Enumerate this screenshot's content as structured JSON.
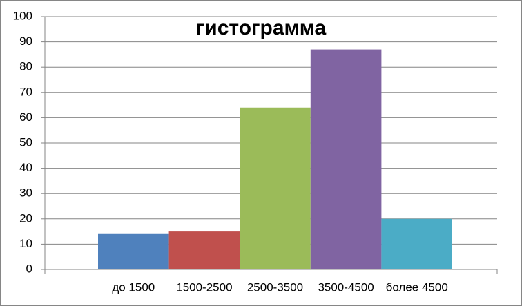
{
  "chart_data": {
    "type": "bar",
    "title": "гистограмма",
    "categories": [
      "до 1500",
      "1500-2500",
      "2500-3500",
      "3500-4500",
      "более 4500"
    ],
    "values": [
      14,
      15,
      64,
      87,
      20
    ],
    "colors": [
      "#4f81bd",
      "#c0504d",
      "#9bbb59",
      "#8064a2",
      "#4bacc6"
    ],
    "ylim": [
      0,
      100
    ],
    "yticks": [
      0,
      10,
      20,
      30,
      40,
      50,
      60,
      70,
      80,
      90,
      100
    ],
    "grid": true
  }
}
